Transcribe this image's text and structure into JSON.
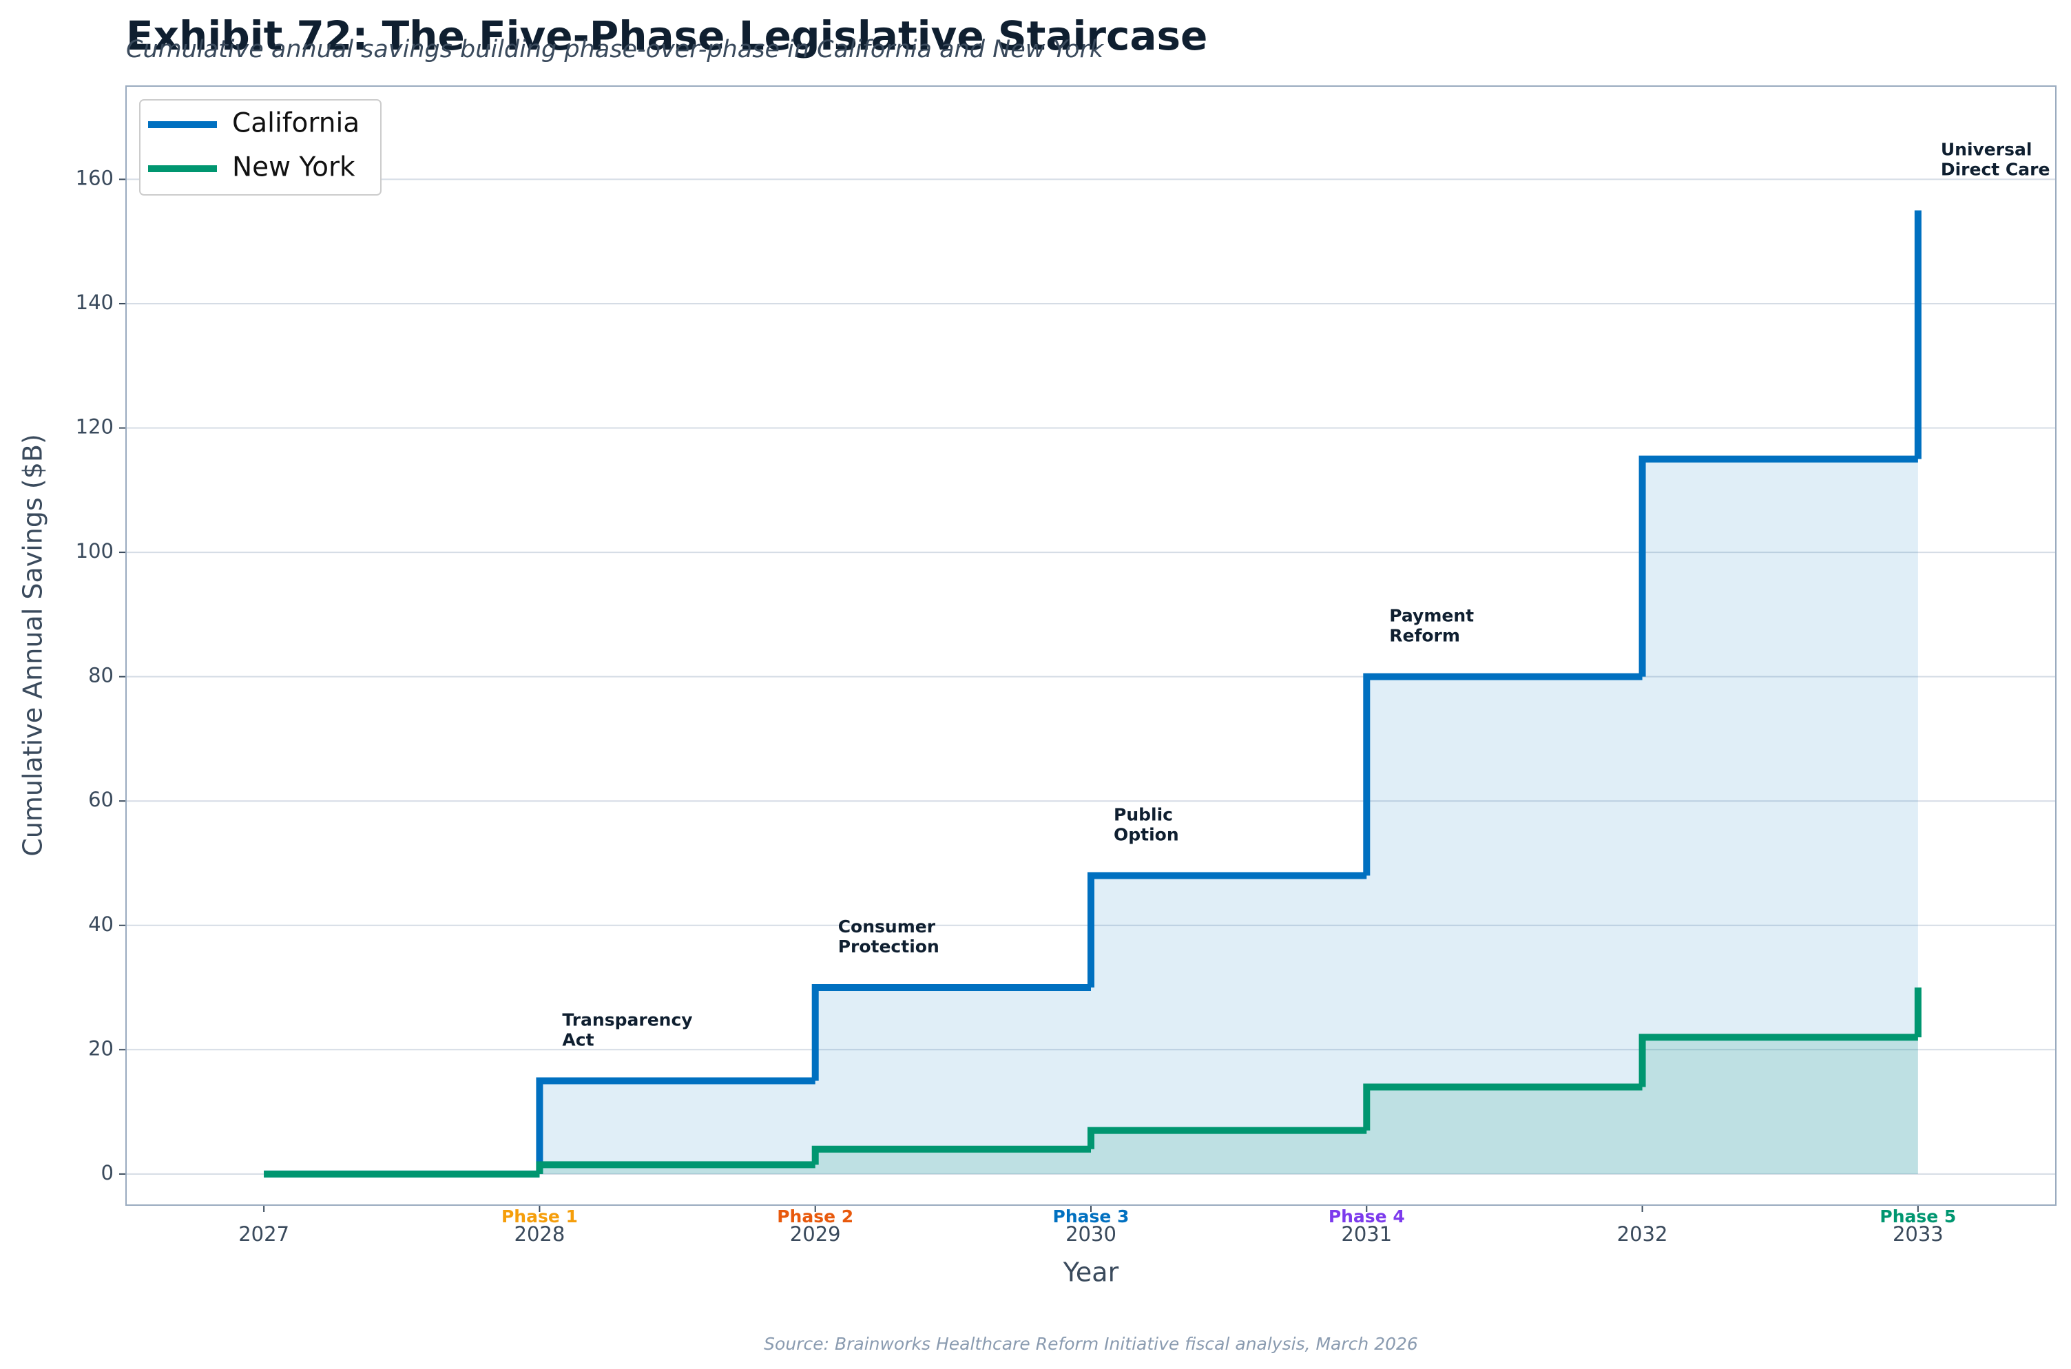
{
  "chart_data": {
    "type": "step",
    "title": "Exhibit 72: The Five-Phase Legislative Staircase",
    "subtitle": "Cumulative annual savings building phase-over-phase in California and New York",
    "x_label": "Year",
    "y_label": "Cumulative Annual Savings ($B)",
    "source": "Source: Brainworks Healthcare Reform Initiative fiscal analysis, March 2026",
    "x": [
      2027,
      2028,
      2029,
      2030,
      2031,
      2032,
      2033
    ],
    "series": [
      {
        "name": "California",
        "color": "#0070c0",
        "values": [
          0,
          15,
          30,
          48,
          80,
          115,
          155
        ]
      },
      {
        "name": "New York",
        "color": "#009670",
        "values": [
          0,
          1.5,
          4,
          7,
          14,
          22,
          30
        ]
      }
    ],
    "xlim": [
      2026.5,
      2033.5
    ],
    "xticks": [
      2027,
      2028,
      2029,
      2030,
      2031,
      2032,
      2033
    ],
    "ylim": [
      -5,
      175
    ],
    "yticks": [
      0,
      20,
      40,
      60,
      80,
      100,
      120,
      140,
      160
    ],
    "grid": true,
    "legend": "upper-left",
    "phases": [
      {
        "x": 2028,
        "label": "Phase 1",
        "color": "#f59e0b",
        "lines": [
          "Transparency",
          "Act"
        ]
      },
      {
        "x": 2029,
        "label": "Phase 2",
        "color": "#e8590c",
        "lines": [
          "Consumer",
          "Protection"
        ]
      },
      {
        "x": 2030,
        "label": "Phase 3",
        "color": "#0070c0",
        "lines": [
          "Public",
          "Option"
        ]
      },
      {
        "x": 2031,
        "label": "Phase 4",
        "color": "#7c3aed",
        "lines": [
          "Payment",
          "Reform"
        ]
      },
      {
        "x": 2033,
        "label": "Phase 5",
        "color": "#009670",
        "lines": [
          "Universal",
          "Direct Care"
        ]
      }
    ]
  }
}
